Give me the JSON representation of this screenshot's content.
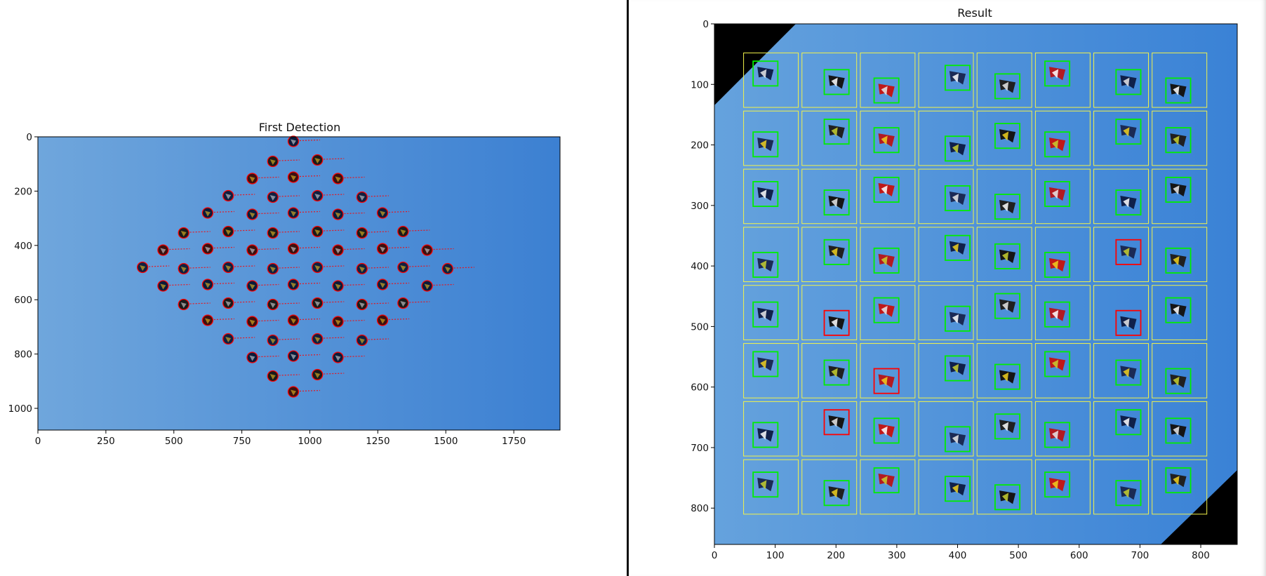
{
  "figures": {
    "left": {
      "title": "First Detection",
      "x_ticks": [
        "0",
        "250",
        "500",
        "750",
        "1000",
        "1250",
        "1500",
        "1750"
      ],
      "y_ticks": [
        "0",
        "200",
        "400",
        "600",
        "800",
        "1000"
      ],
      "image_colors": {
        "sky_light": "#6fa6dc",
        "sky_dark": "#3c80d2",
        "marker": "#ff0000"
      }
    },
    "right": {
      "title": "Result",
      "x_ticks": [
        "0",
        "100",
        "200",
        "300",
        "400",
        "500",
        "600",
        "700",
        "800"
      ],
      "y_ticks": [
        "0",
        "100",
        "200",
        "300",
        "400",
        "500",
        "600",
        "700",
        "800"
      ],
      "grid": {
        "rows": 8,
        "cols": 8
      },
      "image_colors": {
        "sky_light": "#65a2dd",
        "sky_dark": "#3a82d6",
        "cell_border": "#f2f24a",
        "ok_box": "#00ee00",
        "bad_box": "#ff0000"
      },
      "flagged_cells": [
        [
          3,
          6
        ],
        [
          4,
          1
        ],
        [
          4,
          6
        ],
        [
          5,
          2
        ],
        [
          6,
          1
        ]
      ]
    }
  }
}
